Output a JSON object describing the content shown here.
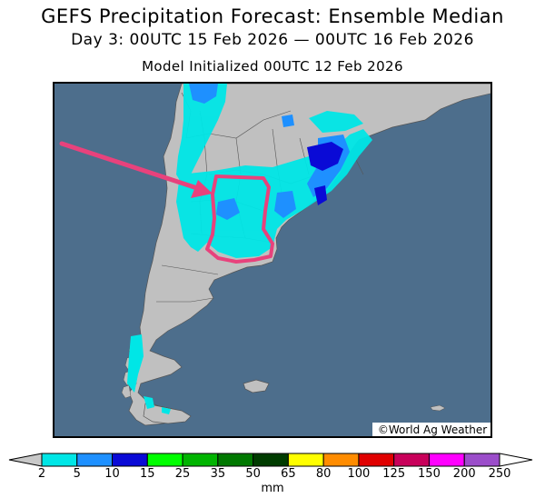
{
  "title": "GEFS Precipitation Forecast: Ensemble Median",
  "subtitle": "Day 3: 00UTC 15 Feb 2026 — 00UTC 16 Feb 2026",
  "init_text": "Model Initialized 00UTC 12 Feb 2026",
  "credit": "©World Ag Weather",
  "colors": {
    "ocean": "#4d6e8c",
    "land": "#c0c0c0",
    "highlight": "#e8427c"
  },
  "legend": {
    "units": "mm",
    "bins": [
      {
        "label": "2",
        "color": "#00e6e6"
      },
      {
        "label": "5",
        "color": "#1e90ff"
      },
      {
        "label": "10",
        "color": "#0a0ad6"
      },
      {
        "label": "15",
        "color": "#00ff00"
      },
      {
        "label": "25",
        "color": "#00b400"
      },
      {
        "label": "35",
        "color": "#007800"
      },
      {
        "label": "50",
        "color": "#003c00"
      },
      {
        "label": "65",
        "color": "#ffff00"
      },
      {
        "label": "80",
        "color": "#ff8c00"
      },
      {
        "label": "100",
        "color": "#e00000"
      },
      {
        "label": "125",
        "color": "#c8005a"
      },
      {
        "label": "150",
        "color": "#ff00ff"
      },
      {
        "label": "200",
        "color": "#9b4dca"
      },
      {
        "label": "250",
        "color": ""
      }
    ],
    "under_color": "#c8c8c8",
    "over_color": "#ffffff"
  }
}
